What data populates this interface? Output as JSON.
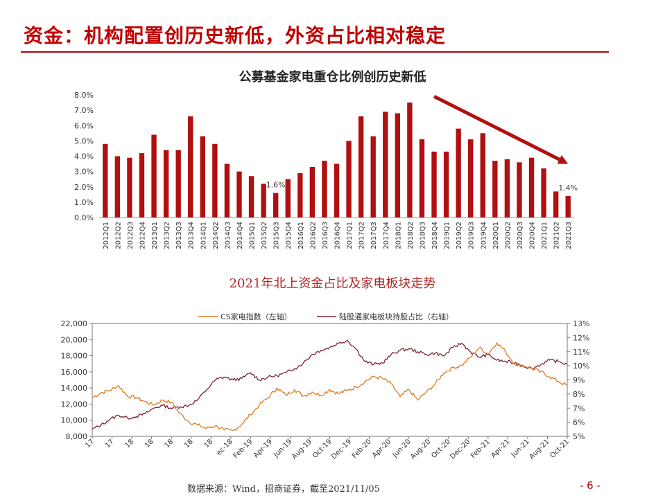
{
  "page": {
    "title": "资金：机构配置创历史新低，外资占比相对稳定",
    "footer": "数据来源：Wind，招商证券，截至2021/11/05",
    "page_number": "- 6 -"
  },
  "colors": {
    "accent": "#c00000",
    "bar": "#b01010",
    "orange": "#e07b1e",
    "maroon": "#7a2030"
  },
  "chart_data": [
    {
      "type": "bar",
      "title": "公募基金家电重仓比例创历史新低",
      "categories": [
        "2012Q1",
        "2012Q2",
        "2012Q3",
        "2012Q4",
        "2013Q1",
        "2013Q2",
        "2013Q3",
        "2013Q4",
        "2014Q1",
        "2014Q2",
        "2014Q3",
        "2014Q4",
        "2015Q1",
        "2015Q2",
        "2015Q3",
        "2015Q4",
        "2016Q1",
        "2016Q2",
        "2016Q3",
        "2016Q4",
        "2017Q1",
        "2017Q2",
        "2017Q3",
        "2017Q4",
        "2018Q1",
        "2018Q2",
        "2018Q3",
        "2018Q4",
        "2019Q1",
        "2019Q2",
        "2019Q3",
        "2019Q4",
        "2020Q1",
        "2020Q2",
        "2020Q3",
        "2020Q4",
        "2021Q1",
        "2021Q2",
        "2021Q3"
      ],
      "values": [
        4.8,
        4.0,
        3.9,
        4.2,
        5.4,
        4.4,
        4.4,
        6.6,
        5.3,
        4.8,
        3.5,
        3.0,
        2.7,
        2.2,
        1.6,
        2.5,
        2.9,
        3.3,
        3.7,
        3.5,
        5.0,
        6.6,
        5.3,
        6.9,
        6.8,
        7.5,
        5.1,
        4.3,
        4.3,
        5.8,
        5.1,
        5.5,
        3.7,
        3.8,
        3.6,
        3.9,
        3.2,
        1.7,
        1.4
      ],
      "ylim": [
        0,
        8
      ],
      "yticks": [
        "0.0%",
        "1.0%",
        "2.0%",
        "3.0%",
        "4.0%",
        "5.0%",
        "6.0%",
        "7.0%",
        "8.0%"
      ],
      "annotations": [
        {
          "category": "2015Q3",
          "text": "1.6%"
        },
        {
          "category": "2021Q3",
          "text": "1.4%"
        }
      ],
      "trend_arrow": {
        "from_category": "2018Q4",
        "from_value": 7.9,
        "to_category": "2021Q3",
        "to_value": 3.5
      },
      "grid": false
    },
    {
      "type": "line",
      "title": "2021年北上资金占比及家电板块走势",
      "legend_position": "top",
      "series": [
        {
          "name": "CS家电指数（左轴）",
          "axis": "left"
        },
        {
          "name": "陆股通家电板块持股占比（右轴）",
          "axis": "right"
        }
      ],
      "x_ticks": [
        "17",
        "17",
        "18",
        "18",
        "18",
        "18",
        "18",
        "ec-18",
        "Feb-19",
        "Apr-19",
        "Jun-19",
        "Aug-19",
        "Oct-19",
        "Dec-19",
        "Feb-20",
        "Apr-20",
        "Jun-20",
        "Aug-20",
        "Oct-20",
        "Dec-20",
        "Feb-21",
        "Apr-21",
        "Jun-21",
        "Aug-21",
        "Oct-21"
      ],
      "y_left_ticks": [
        "8,000",
        "10,000",
        "12,000",
        "14,000",
        "16,000",
        "18,000",
        "20,000",
        "22,000"
      ],
      "y_left_range": [
        8000,
        22000
      ],
      "y_right_ticks": [
        "5%",
        "6%",
        "7%",
        "8%",
        "9%",
        "10%",
        "11%",
        "12%",
        "13%"
      ],
      "y_right_range": [
        5,
        13
      ],
      "anchors_index": [
        [
          0,
          12800
        ],
        [
          1,
          13400
        ],
        [
          2,
          13700
        ],
        [
          3,
          14300
        ],
        [
          4,
          13000
        ],
        [
          5,
          12800
        ],
        [
          6,
          12300
        ],
        [
          7,
          11900
        ],
        [
          8,
          12500
        ],
        [
          9,
          12200
        ],
        [
          10,
          10800
        ],
        [
          11,
          9800
        ],
        [
          12,
          9400
        ],
        [
          13,
          9000
        ],
        [
          14,
          9300
        ],
        [
          15,
          8800
        ],
        [
          16,
          8700
        ],
        [
          17,
          9500
        ],
        [
          18,
          10700
        ],
        [
          19,
          11900
        ],
        [
          20,
          12800
        ],
        [
          21,
          14000
        ],
        [
          22,
          13100
        ],
        [
          23,
          13800
        ],
        [
          24,
          13000
        ],
        [
          25,
          13500
        ],
        [
          26,
          13100
        ],
        [
          27,
          13800
        ],
        [
          28,
          13300
        ],
        [
          29,
          13700
        ],
        [
          30,
          14100
        ],
        [
          31,
          14800
        ],
        [
          32,
          15400
        ],
        [
          33,
          15200
        ],
        [
          34,
          14500
        ],
        [
          35,
          12900
        ],
        [
          36,
          13800
        ],
        [
          37,
          12500
        ],
        [
          38,
          13500
        ],
        [
          39,
          14500
        ],
        [
          40,
          15900
        ],
        [
          41,
          16500
        ],
        [
          42,
          16800
        ],
        [
          43,
          17800
        ],
        [
          44,
          19000
        ],
        [
          45,
          18200
        ],
        [
          46,
          19600
        ],
        [
          47,
          18500
        ],
        [
          48,
          17000
        ],
        [
          49,
          16800
        ],
        [
          50,
          16400
        ],
        [
          51,
          16000
        ],
        [
          52,
          15400
        ],
        [
          53,
          14800
        ],
        [
          54,
          14300
        ]
      ],
      "anchors_share": [
        [
          0,
          5.5
        ],
        [
          1,
          5.8
        ],
        [
          2,
          6.2
        ],
        [
          3,
          6.5
        ],
        [
          4,
          6.3
        ],
        [
          5,
          6.4
        ],
        [
          6,
          6.6
        ],
        [
          7,
          7.0
        ],
        [
          8,
          7.2
        ],
        [
          9,
          7.0
        ],
        [
          10,
          7.1
        ],
        [
          11,
          7.2
        ],
        [
          12,
          7.6
        ],
        [
          13,
          8.3
        ],
        [
          14,
          9.0
        ],
        [
          15,
          9.2
        ],
        [
          16,
          9.0
        ],
        [
          17,
          9.1
        ],
        [
          18,
          9.5
        ],
        [
          19,
          9.0
        ],
        [
          20,
          9.2
        ],
        [
          21,
          9.3
        ],
        [
          22,
          9.5
        ],
        [
          23,
          9.8
        ],
        [
          24,
          10.2
        ],
        [
          25,
          10.8
        ],
        [
          26,
          11.1
        ],
        [
          27,
          11.3
        ],
        [
          28,
          11.6
        ],
        [
          29,
          11.8
        ],
        [
          30,
          11.2
        ],
        [
          31,
          10.3
        ],
        [
          32,
          10.1
        ],
        [
          33,
          10.2
        ],
        [
          34,
          10.8
        ],
        [
          35,
          11.1
        ],
        [
          36,
          11.2
        ],
        [
          37,
          11.0
        ],
        [
          38,
          10.8
        ],
        [
          39,
          10.9
        ],
        [
          40,
          10.7
        ],
        [
          41,
          11.3
        ],
        [
          42,
          11.6
        ],
        [
          43,
          11.0
        ],
        [
          44,
          10.6
        ],
        [
          45,
          10.8
        ],
        [
          46,
          10.4
        ],
        [
          47,
          10.3
        ],
        [
          48,
          10.2
        ],
        [
          49,
          10.0
        ],
        [
          50,
          9.8
        ],
        [
          51,
          10.1
        ],
        [
          52,
          10.4
        ],
        [
          53,
          10.3
        ],
        [
          54,
          10.1
        ]
      ]
    }
  ]
}
